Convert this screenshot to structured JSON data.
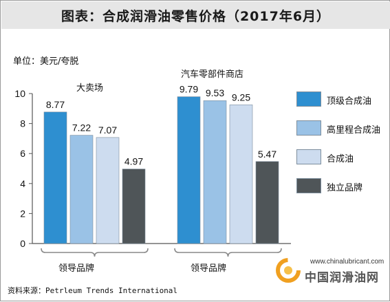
{
  "header": {
    "title": "图表：合成润滑油零售价格（2017年6月）"
  },
  "unit_label": "单位：美元/夸脱",
  "chart_data": {
    "type": "bar",
    "title": "图表：合成润滑油零售价格（2017年6月）",
    "ylabel": "单位：美元/夸脱",
    "xlabel": "",
    "ylim": [
      0,
      10
    ],
    "yticks": [
      0,
      2,
      4,
      6,
      8,
      10
    ],
    "categories": [
      "大卖场",
      "汽车零部件商店"
    ],
    "bracket_label": "领导品牌",
    "series": [
      {
        "name": "顶级合成油",
        "values": [
          8.77,
          9.79
        ],
        "labels": [
          "8.77",
          "9.79"
        ],
        "color": "#2e8fd0"
      },
      {
        "name": "高里程合成油",
        "values": [
          7.22,
          9.53
        ],
        "labels": [
          "7.22",
          "9.53"
        ],
        "color": "#9ac2e6"
      },
      {
        "name": "合成油",
        "values": [
          7.07,
          9.25
        ],
        "labels": [
          "7.07",
          "9.25"
        ],
        "color": "#cddcef"
      },
      {
        "name": "独立品牌",
        "values": [
          4.97,
          5.47
        ],
        "labels": [
          "4.97",
          "5.47"
        ],
        "color": "#4f5558"
      }
    ],
    "grid": false,
    "legend_position": "right"
  },
  "watermark": {
    "url": "www.chinalubricant.com",
    "name": "中国润滑油网"
  },
  "source": "资料来源：Petrleum Trends International"
}
